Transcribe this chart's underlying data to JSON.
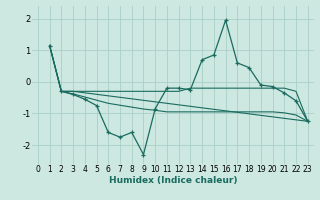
{
  "xlabel": "Humidex (Indice chaleur)",
  "bg_color": "#cce8e0",
  "grid_color": "#aacec6",
  "line_color": "#1a6b60",
  "xlim": [
    -0.5,
    23.5
  ],
  "ylim": [
    -2.6,
    2.4
  ],
  "yticks": [
    -2,
    -1,
    0,
    1,
    2
  ],
  "xticks": [
    0,
    1,
    2,
    3,
    4,
    5,
    6,
    7,
    8,
    9,
    10,
    11,
    12,
    13,
    14,
    15,
    16,
    17,
    18,
    19,
    20,
    21,
    22,
    23
  ],
  "series": [
    {
      "x": [
        1,
        2,
        3,
        4,
        5,
        6,
        7,
        8,
        9,
        10,
        11,
        12,
        13,
        14,
        15,
        16,
        17,
        18,
        19,
        20,
        21,
        22,
        23
      ],
      "y": [
        1.15,
        -0.3,
        -0.4,
        -0.55,
        -0.75,
        -1.6,
        -1.75,
        -1.6,
        -2.3,
        -0.85,
        -0.2,
        -0.2,
        -0.25,
        0.7,
        0.85,
        1.95,
        0.6,
        0.45,
        -0.1,
        -0.15,
        -0.35,
        -0.6,
        -1.25
      ],
      "marker": "+"
    },
    {
      "x": [
        1,
        2,
        3,
        23
      ],
      "y": [
        1.15,
        -0.3,
        -0.3,
        -1.25
      ],
      "marker": null
    },
    {
      "x": [
        1,
        2,
        3,
        4,
        5,
        6,
        7,
        8,
        9,
        10,
        11,
        12,
        13,
        14,
        15,
        16,
        17,
        18,
        19,
        20,
        21,
        22,
        23
      ],
      "y": [
        1.15,
        -0.3,
        -0.3,
        -0.3,
        -0.3,
        -0.3,
        -0.3,
        -0.3,
        -0.3,
        -0.3,
        -0.3,
        -0.3,
        -0.2,
        -0.2,
        -0.2,
        -0.2,
        -0.2,
        -0.2,
        -0.2,
        -0.2,
        -0.2,
        -0.3,
        -1.25
      ],
      "marker": null
    },
    {
      "x": [
        1,
        2,
        3,
        4,
        5,
        6,
        7,
        8,
        9,
        10,
        11,
        12,
        13,
        14,
        15,
        16,
        17,
        18,
        19,
        20,
        21,
        22,
        23
      ],
      "y": [
        1.15,
        -0.3,
        -0.38,
        -0.48,
        -0.58,
        -0.68,
        -0.74,
        -0.8,
        -0.86,
        -0.9,
        -0.95,
        -0.95,
        -0.95,
        -0.95,
        -0.95,
        -0.95,
        -0.95,
        -0.95,
        -0.95,
        -0.95,
        -0.98,
        -1.05,
        -1.25
      ],
      "marker": null
    }
  ]
}
